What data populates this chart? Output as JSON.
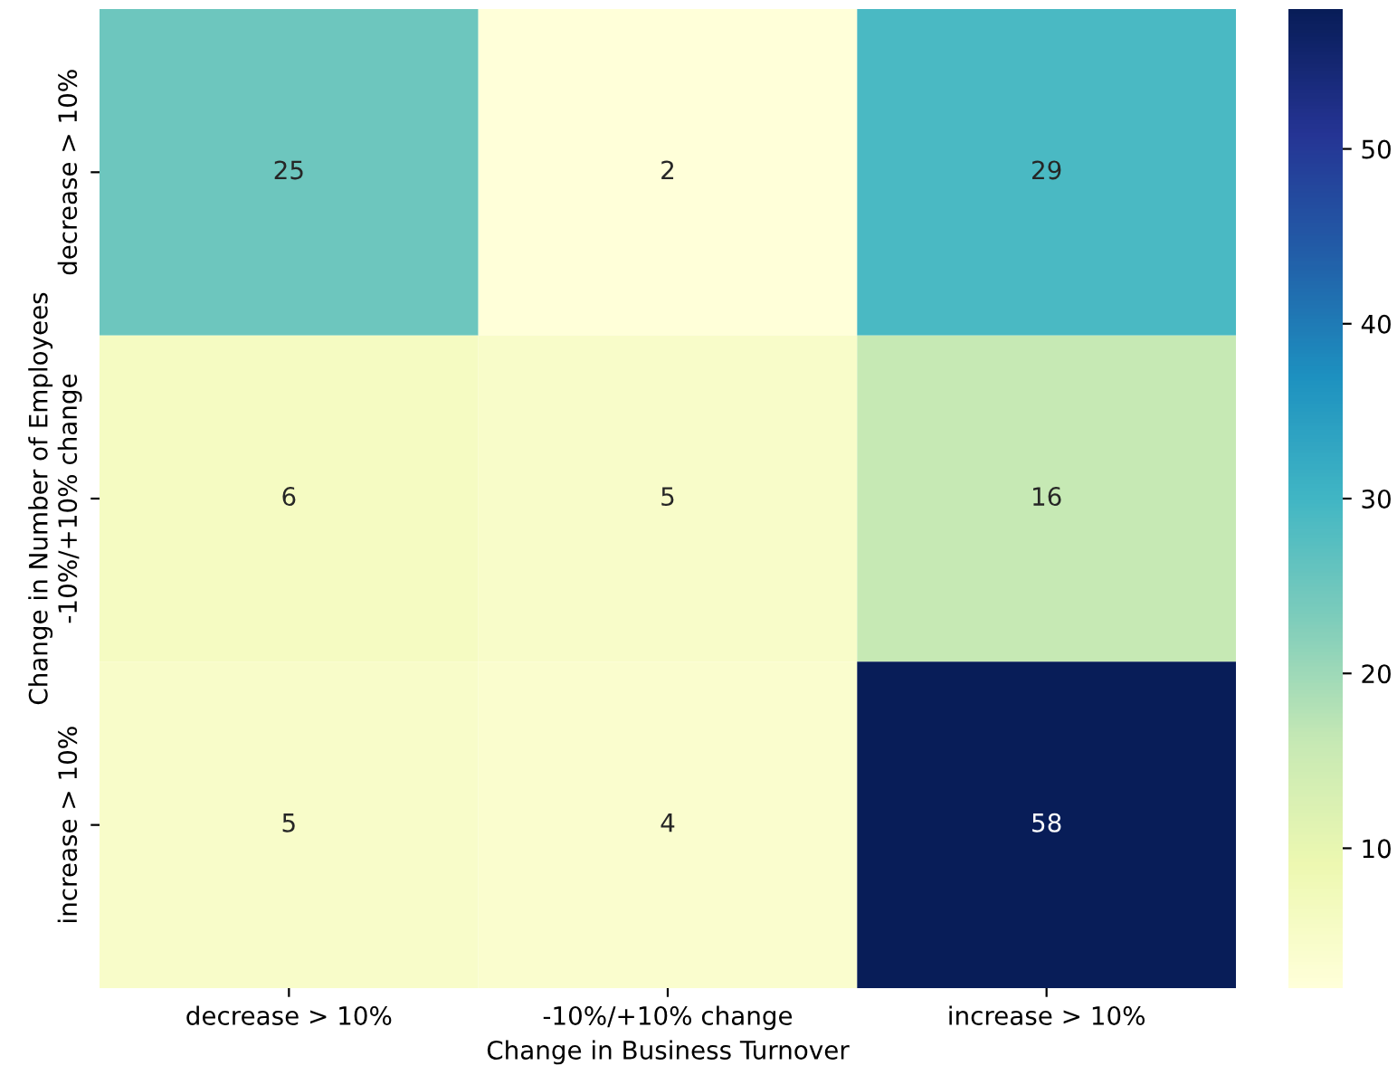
{
  "chart_data": {
    "type": "heatmap",
    "xlabel": "Change in Business Turnover",
    "ylabel": "Change in Number of Employees",
    "categories": [
      "decrease > 10%",
      "-10%/+10% change",
      "increase > 10%"
    ],
    "y_categories": [
      "decrease > 10%",
      "-10%/+10% change",
      "increase > 10%"
    ],
    "cells": [
      [
        25,
        2,
        29
      ],
      [
        6,
        5,
        16
      ],
      [
        5,
        4,
        58
      ]
    ],
    "data_labels": true,
    "clim": [
      2,
      58
    ],
    "cticks": [
      10,
      20,
      30,
      40,
      50
    ]
  }
}
